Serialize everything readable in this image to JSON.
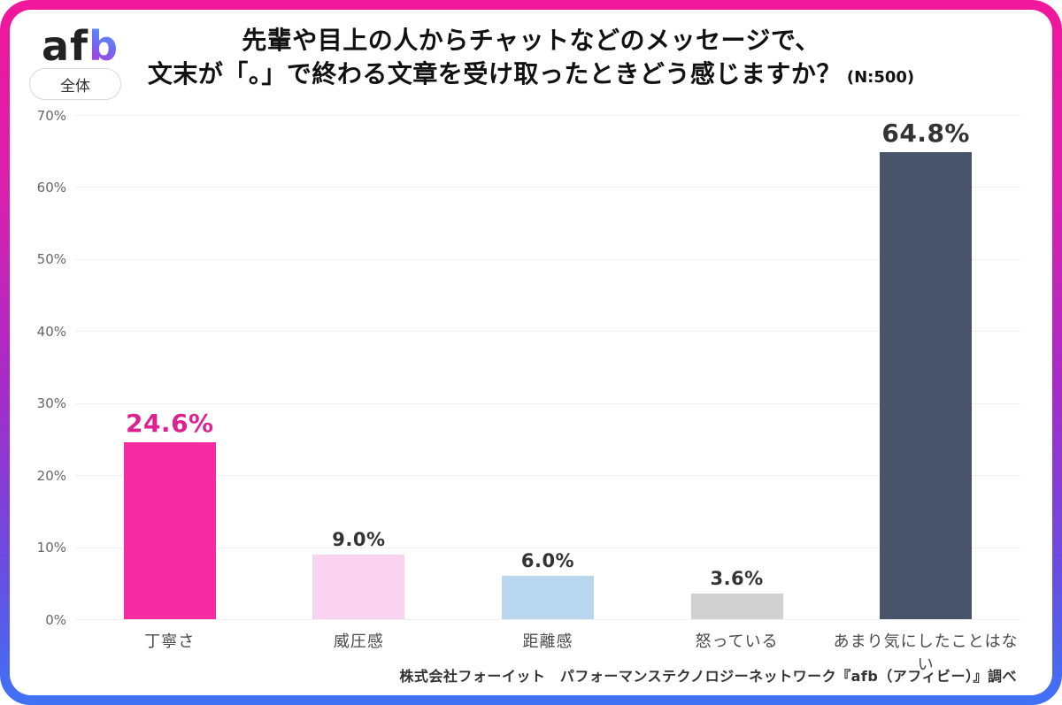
{
  "frame": {
    "gradient_top": "#F0179B",
    "gradient_middle": "#A62BC8",
    "gradient_bottom": "#3F72F5"
  },
  "header": {
    "logo_af": "af",
    "logo_b": "b",
    "scope_badge": "全体",
    "title_line1": "先輩や目上の人からチャットなどのメッセージで、",
    "title_line2": "文末が「。」で終わる文章を受け取ったときどう感じますか？",
    "sample_size": "(N:500)"
  },
  "chart_data": {
    "type": "bar",
    "title": "先輩や目上の人からチャットなどのメッセージで、文末が「。」で終わる文章を受け取ったときどう感じますか？",
    "sample_size": "(N:500)",
    "categories": [
      "丁寧さ",
      "威圧感",
      "距離感",
      "怒っている",
      "あまり気にしたことはない"
    ],
    "values": [
      24.6,
      9.0,
      6.0,
      3.6,
      64.8
    ],
    "value_labels": [
      "24.6%",
      "9.0%",
      "6.0%",
      "3.6%",
      "64.8%"
    ],
    "bar_colors": [
      "#F52BA2",
      "#FAD3F0",
      "#B9D7EE",
      "#D2D1D1",
      "#47546A"
    ],
    "value_label_colors": [
      "#DE2191",
      "#333333",
      "#333333",
      "#333333",
      "#333333"
    ],
    "xlabel": "",
    "ylabel": "",
    "ylim": [
      0,
      70
    ],
    "yticks": [
      "70%",
      "60%",
      "50%",
      "40%",
      "30%",
      "20%",
      "10%",
      "0%"
    ],
    "grid": true,
    "legend": false
  },
  "footer": {
    "source": "株式会社フォーイット　パフォーマンステクノロジーネットワーク『afb（アフィビー）』調べ"
  }
}
